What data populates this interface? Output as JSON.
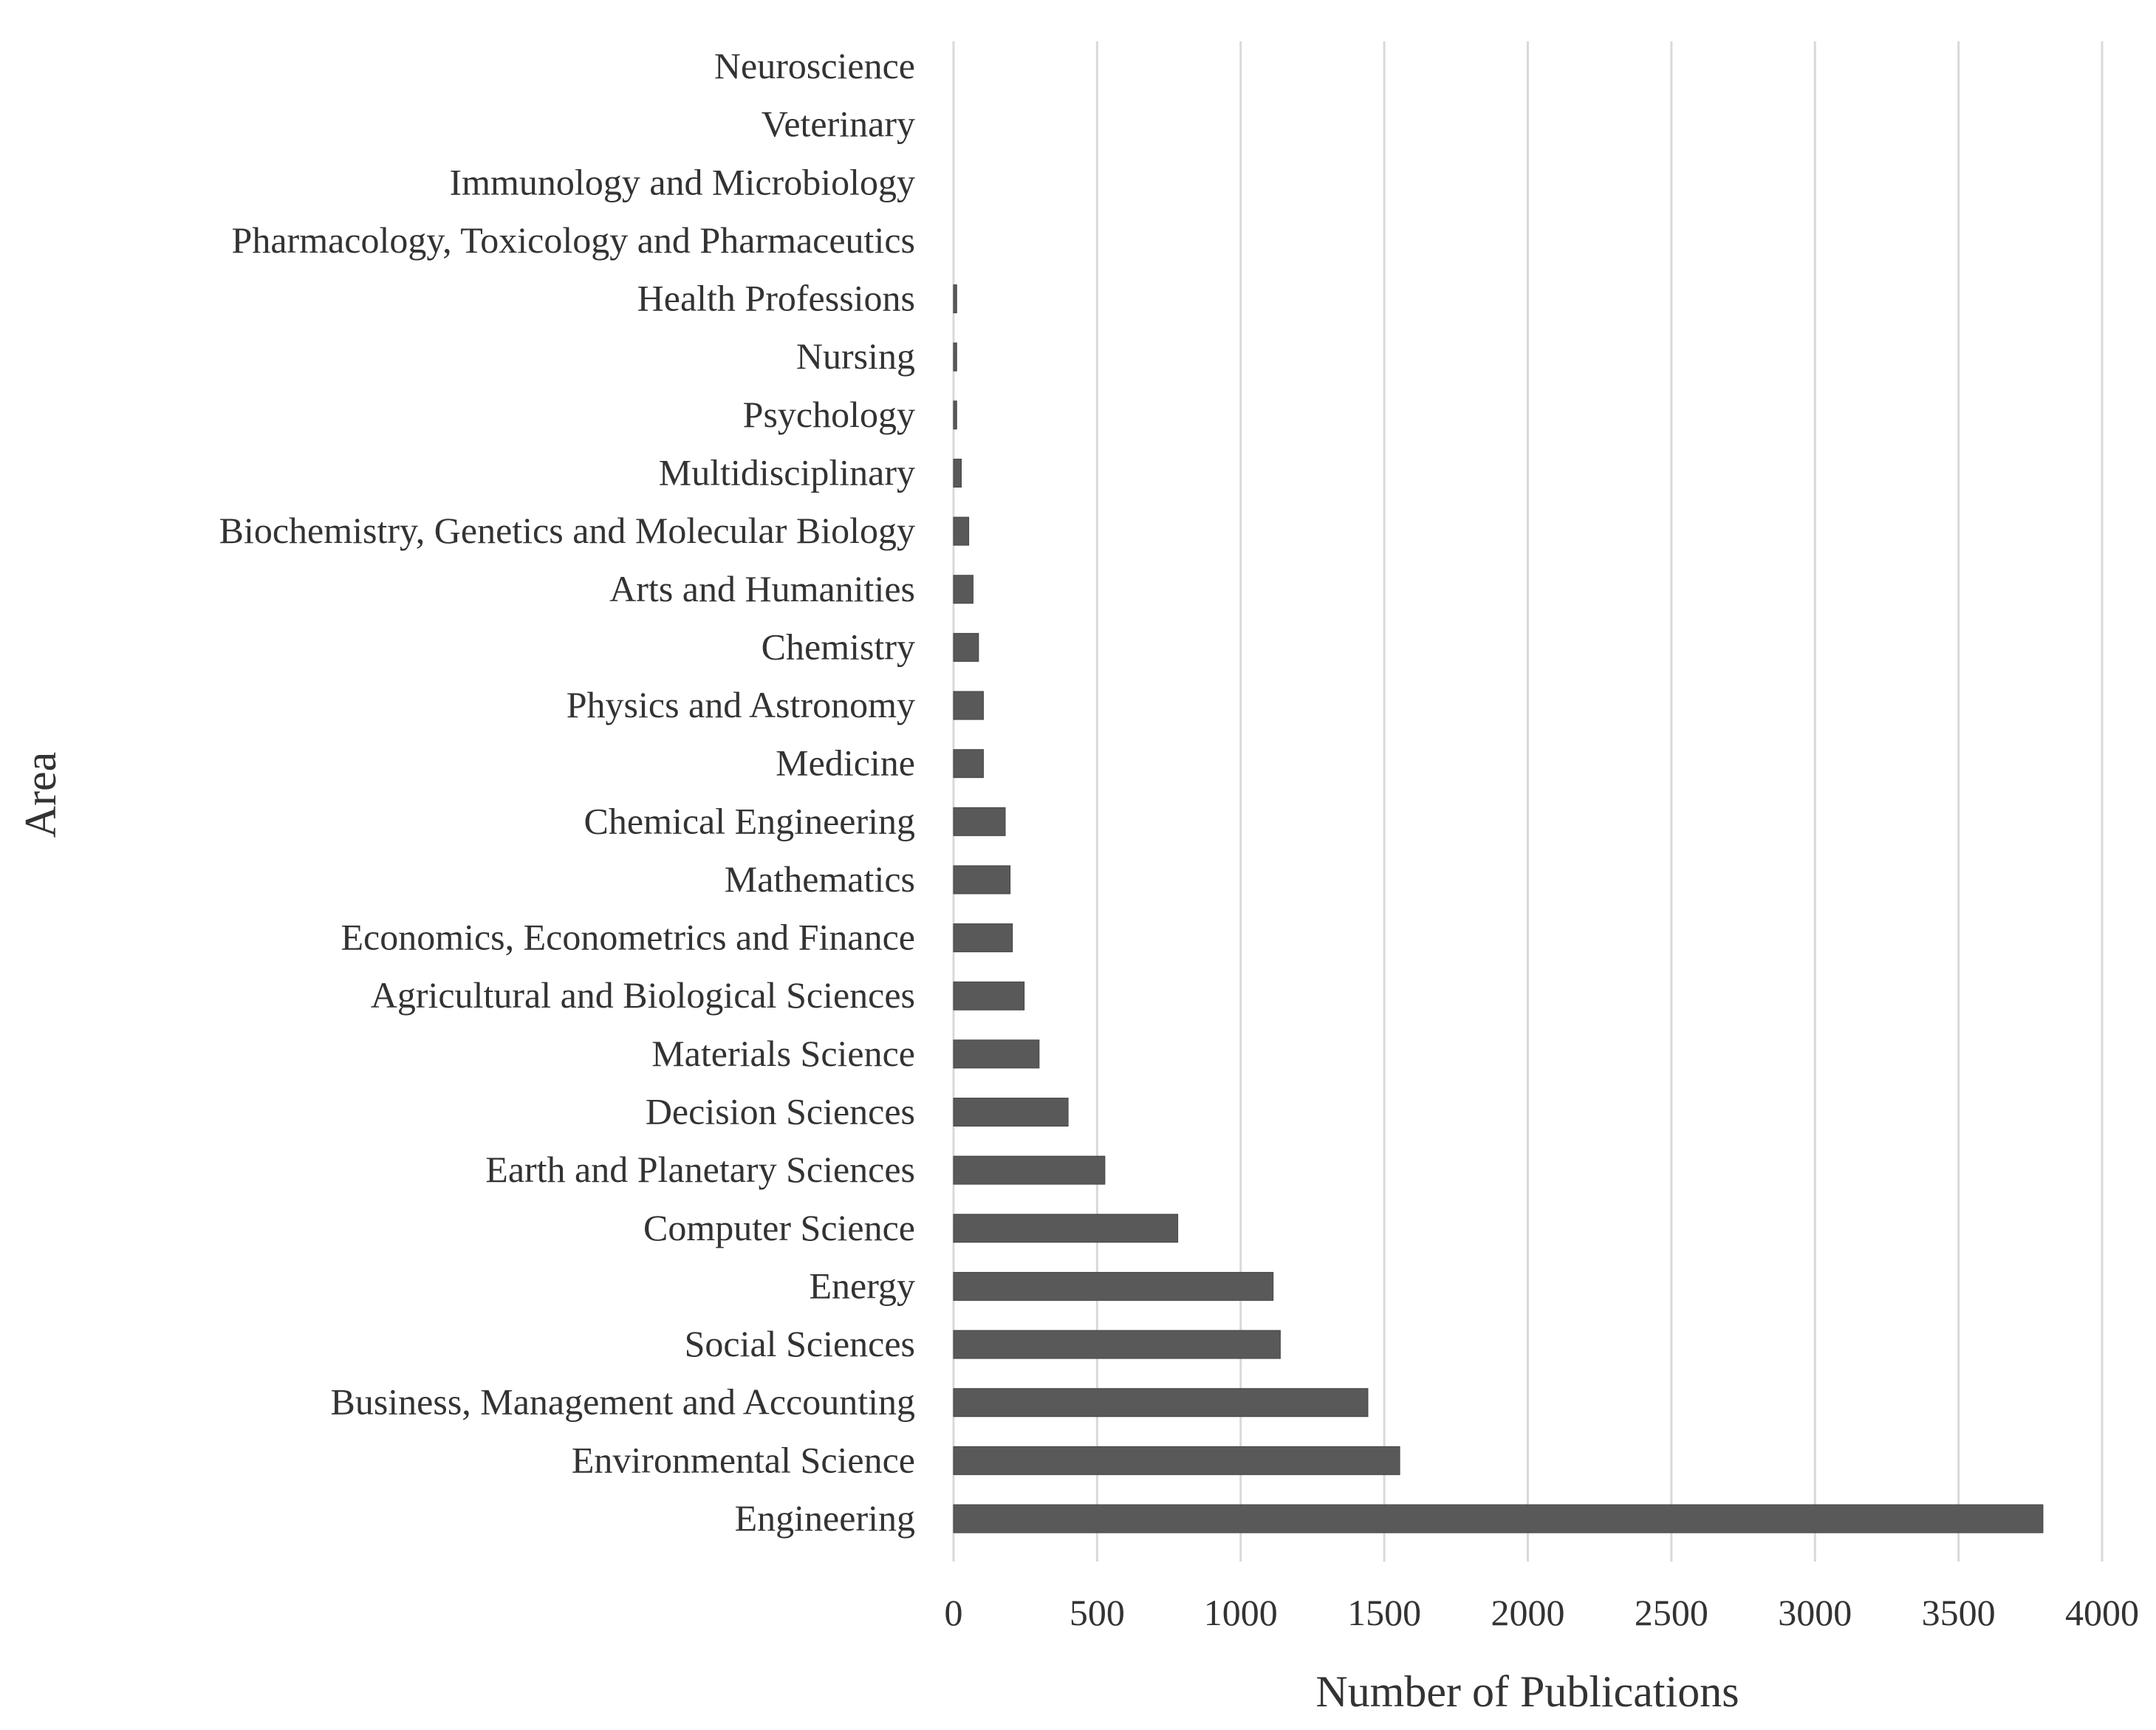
{
  "chart_data": {
    "type": "bar",
    "orientation": "horizontal",
    "title": "",
    "xlabel": "Number of Publications",
    "ylabel": "Area",
    "xlim": [
      0,
      4000
    ],
    "xticks": [
      0,
      500,
      1000,
      1500,
      2000,
      2500,
      3000,
      3500,
      4000
    ],
    "grid": "vertical",
    "bar_color": "#595959",
    "grid_color": "#d9d9d9",
    "categories": [
      "Neuroscience",
      "Veterinary",
      "Immunology and Microbiology",
      "Pharmacology, Toxicology and Pharmaceutics",
      "Health Professions",
      "Nursing",
      "Psychology",
      "Multidisciplinary",
      "Biochemistry, Genetics and Molecular Biology",
      "Arts and Humanities",
      "Chemistry",
      "Physics and Astronomy",
      "Medicine",
      "Chemical Engineering",
      "Mathematics",
      "Economics, Econometrics and Finance",
      "Agricultural and Biological Sciences",
      "Materials Science",
      "Decision Sciences",
      "Earth and Planetary Sciences",
      "Computer Science",
      "Energy",
      "Social Sciences",
      "Business, Management and Accounting",
      "Environmental Science",
      "Engineering"
    ],
    "values": [
      0,
      0,
      0,
      0,
      11,
      11,
      11,
      27,
      53,
      68,
      87,
      104,
      104,
      180,
      197,
      205,
      246,
      298,
      399,
      527,
      781,
      1113,
      1138,
      1443,
      1554,
      3794
    ]
  }
}
